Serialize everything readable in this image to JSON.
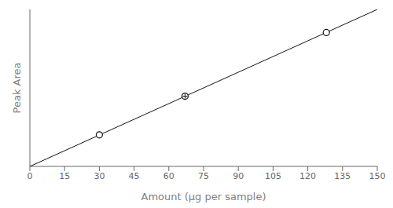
{
  "chart_data": {
    "type": "scatter",
    "xlabel": "Amount (µg per sample)",
    "ylabel": "Peak Area",
    "xlim": [
      0,
      150
    ],
    "xticks": [
      0,
      15,
      30,
      45,
      60,
      75,
      90,
      105,
      120,
      135,
      150
    ],
    "ylim": [
      0,
      1.096151
    ],
    "tick_labels": "x",
    "grid": false,
    "series": [
      {
        "type": "line",
        "color": "#111111",
        "x": [
          0,
          150
        ],
        "values": [
          0,
          1.096151
        ]
      },
      {
        "type": "scatter",
        "color": "#111111",
        "marker": "o",
        "x": [
          30,
          67,
          128
        ],
        "values": [
          0.22,
          0.49,
          0.935
        ]
      },
      {
        "type": "scatter",
        "color": "#111111",
        "marker": "+",
        "x": [
          67
        ],
        "values": [
          0.49
        ]
      }
    ]
  }
}
